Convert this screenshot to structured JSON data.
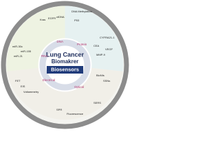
{
  "center": {
    "title_line1": "Lung Cancer",
    "title_line2": "Biomakrer",
    "band": "Biosensors"
  },
  "ring": [
    "DNA",
    "Protein",
    "RNA",
    "Optical",
    "Electrical"
  ],
  "dna": [
    "DNA Methylation",
    "Kras",
    "EGFR",
    "ctDNA",
    "P53"
  ],
  "rna": [
    "miR-30c",
    "miR-155",
    "miR-21"
  ],
  "protein": [
    "CYFRA21-1",
    "CEA",
    "VEGF",
    "MMP-9"
  ],
  "sensors": [
    "FET",
    "EIS",
    "Voltammetry",
    "SPR",
    "Fluorescence",
    "SERS",
    "SSNs",
    "BioNIs"
  ]
}
